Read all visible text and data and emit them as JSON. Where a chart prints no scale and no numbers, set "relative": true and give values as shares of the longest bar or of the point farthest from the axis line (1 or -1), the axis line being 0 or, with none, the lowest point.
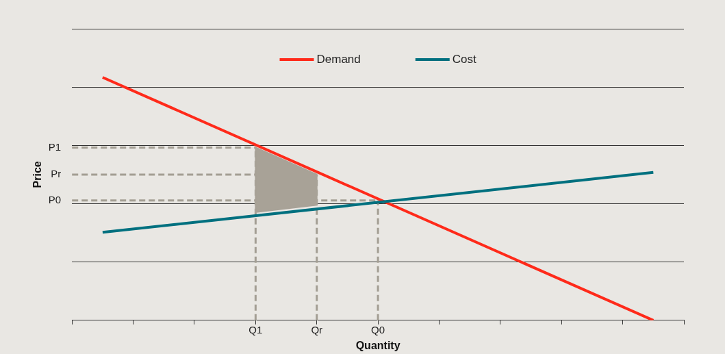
{
  "chart_data": {
    "type": "line",
    "xlabel": "Quantity",
    "ylabel": "Price",
    "relative": true,
    "categories": [
      null,
      null,
      null,
      null,
      null,
      null,
      "Q1",
      null,
      "Qr",
      null,
      "Q0",
      null,
      null,
      null,
      null,
      null,
      null,
      null,
      null,
      null,
      null
    ],
    "grid": "y",
    "legend": "top",
    "marker": "none",
    "series": [
      {
        "type": "line",
        "color": "#a8a297",
        "values": [
          null,
          null,
          null,
          null,
          null,
          null,
          null,
          null,
          null,
          null,
          null,
          null,
          null,
          null,
          null,
          null,
          null,
          null,
          null,
          null,
          null
        ],
        "upper": [
          null,
          null,
          null,
          null,
          null,
          null,
          0.711,
          null,
          0.6,
          null,
          null,
          null,
          null,
          null,
          null,
          null,
          null,
          null,
          null,
          null,
          null
        ],
        "lower": [
          null,
          null,
          null,
          null,
          null,
          null,
          0.445,
          null,
          0.475,
          null,
          null,
          null,
          null,
          null,
          null,
          null,
          null,
          null,
          null,
          null,
          null
        ]
      },
      {
        "type": "line",
        "name": "Demand",
        "color": "#ff2a1a",
        "line_style": "solid",
        "values": [
          null,
          1,
          null,
          null,
          null,
          null,
          null,
          null,
          null,
          null,
          null,
          null,
          null,
          null,
          null,
          null,
          null,
          null,
          null,
          0,
          null
        ]
      },
      {
        "type": "line",
        "name": "Cost",
        "color": "#00707f",
        "line_style": "solid",
        "values": [
          null,
          0.362,
          null,
          null,
          null,
          null,
          null,
          null,
          null,
          null,
          null,
          null,
          null,
          null,
          null,
          null,
          null,
          null,
          null,
          0.609,
          null
        ]
      }
    ],
    "ref_lines": [
      {
        "axis": "y",
        "value": 0.711,
        "label": "P1",
        "color": "#a39e93",
        "line_style": "dashed"
      },
      {
        "axis": "y",
        "value": 0.6,
        "label": "Pr",
        "color": "#a39e93",
        "line_style": "dashed"
      },
      {
        "axis": "y",
        "value": 0.493,
        "label": "P0",
        "color": "#a39e93",
        "line_style": "dashed"
      },
      {
        "axis": "x",
        "value": "Q1",
        "label": null,
        "color": "#a39e93",
        "line_style": "dashed"
      },
      {
        "axis": "x",
        "value": "Qr",
        "label": null,
        "color": "#a39e93",
        "line_style": "dashed"
      },
      {
        "axis": "x",
        "value": "Q0",
        "label": null,
        "color": "#a39e93",
        "line_style": "dashed"
      }
    ]
  }
}
